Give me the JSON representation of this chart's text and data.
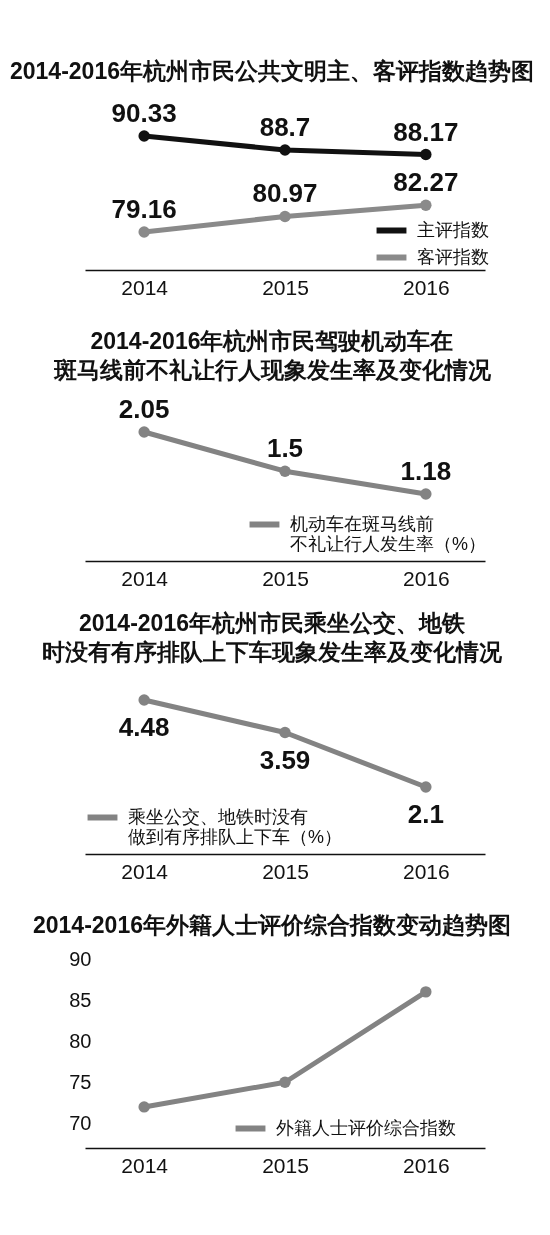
{
  "chart_data": [
    {
      "type": "line",
      "title": "2014-2016年杭州市民公共文明主、客评指数趋势图",
      "categories": [
        "2014",
        "2015",
        "2016"
      ],
      "series": [
        {
          "name": "主评指数",
          "color": "#111111",
          "values": [
            90.33,
            88.7,
            88.17
          ]
        },
        {
          "name": "客评指数",
          "color": "#8a8a8a",
          "values": [
            79.16,
            80.97,
            82.27
          ]
        }
      ],
      "tick_labels": "x",
      "data_labels": true,
      "marker": "circle",
      "line_style": "solid",
      "legend": "bottom right"
    },
    {
      "type": "line",
      "title": "2014-2016年杭州市民驾驶机动车在斑马线前不礼让行人现象发生率及变化情况",
      "categories": [
        "2014",
        "2015",
        "2016"
      ],
      "series": [
        {
          "name": "机动车在斑马线前不礼让行人发生率（%）",
          "color": "#838383",
          "values": [
            2.05,
            1.5,
            1.18
          ]
        }
      ],
      "tick_labels": "x",
      "data_labels": true,
      "marker": "circle",
      "line_style": "solid",
      "legend": "bottom right"
    },
    {
      "type": "line",
      "title": "2014-2016年杭州市民乘坐公交、地铁时没有有序排队上下车现象发生率及变化情况",
      "categories": [
        "2014",
        "2015",
        "2016"
      ],
      "series": [
        {
          "name": "乘坐公交、地铁时没有做到有序排队上下车（%）",
          "color": "#838383",
          "values": [
            4.48,
            3.59,
            2.1
          ]
        }
      ],
      "tick_labels": "x",
      "data_labels": true,
      "marker": "circle",
      "line_style": "solid",
      "legend": "bottom left"
    },
    {
      "type": "line",
      "title": "2014-2016年外籍人士评价综合指数变动趋势图",
      "categories": [
        "2014",
        "2015",
        "2016"
      ],
      "series": [
        {
          "name": "外籍人士评价综合指数",
          "color": "#838383",
          "values": [
            72,
            75,
            86
          ]
        }
      ],
      "ylim": [
        67,
        90
      ],
      "yticks": [
        70,
        75,
        80,
        85,
        90
      ],
      "marker": "circle",
      "line_style": "solid",
      "legend": "bottom right"
    }
  ]
}
